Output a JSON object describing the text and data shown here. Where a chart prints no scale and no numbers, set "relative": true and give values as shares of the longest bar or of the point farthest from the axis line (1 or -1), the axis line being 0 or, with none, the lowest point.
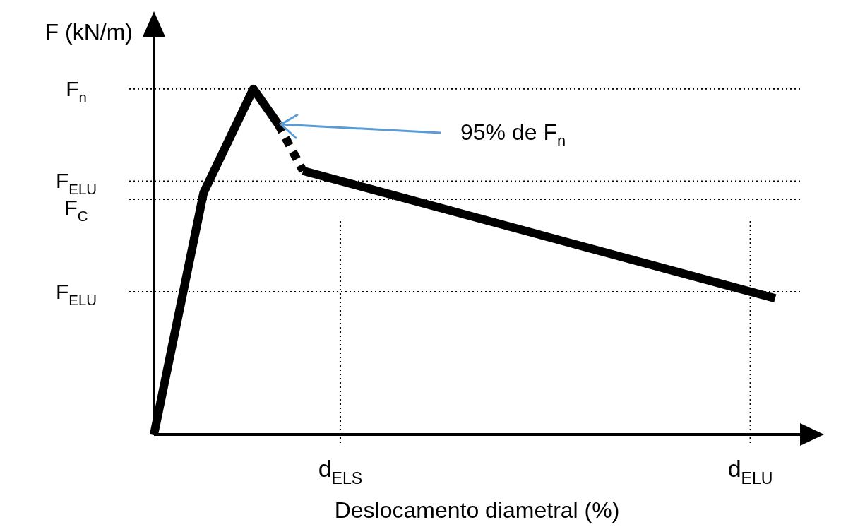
{
  "chart_data": {
    "type": "line",
    "relative": true,
    "xlabel": "Deslocamento diametral (%)",
    "ylabel": "F (kN/m)",
    "legend": false,
    "marker": "none",
    "categories": [
      null,
      null,
      null,
      null,
      null,
      null,
      null,
      null,
      null,
      null,
      null,
      null,
      null,
      null,
      null,
      "d$_{ELS}$",
      null,
      null,
      null,
      null,
      null,
      null,
      null,
      null,
      null,
      null,
      null,
      null,
      null,
      null,
      null,
      null,
      null,
      null,
      null,
      null,
      null,
      null,
      null,
      null,
      null,
      null,
      null,
      null,
      null,
      null,
      null,
      null,
      "d$_{ELU}$",
      null,
      null,
      null,
      null
    ],
    "series": [
      {
        "color": "#000000",
        "line_style": "solid",
        "values": [
          0,
          null,
          null,
          null,
          0.7,
          null,
          null,
          null,
          1,
          null,
          0.898,
          null,
          null,
          null,
          null,
          null,
          null,
          null,
          null,
          null,
          null,
          null,
          null,
          null,
          null,
          null,
          null,
          null,
          null,
          null,
          null,
          null,
          null,
          null,
          null,
          null,
          null,
          null,
          null,
          null,
          null,
          null,
          null,
          null,
          null,
          null,
          null,
          null,
          null,
          null,
          null,
          null,
          null
        ]
      },
      {
        "color": "#000000",
        "line_style": "dashed",
        "values": [
          null,
          null,
          null,
          null,
          null,
          null,
          null,
          null,
          null,
          null,
          0.898,
          null,
          0.763,
          null,
          null,
          null,
          null,
          null,
          null,
          null,
          null,
          null,
          null,
          null,
          null,
          null,
          null,
          null,
          null,
          null,
          null,
          null,
          null,
          null,
          null,
          null,
          null,
          null,
          null,
          null,
          null,
          null,
          null,
          null,
          null,
          null,
          null,
          null,
          null,
          null,
          null,
          null,
          null
        ]
      },
      {
        "color": "#000000",
        "line_style": "solid",
        "values": [
          null,
          null,
          null,
          null,
          null,
          null,
          null,
          null,
          null,
          null,
          null,
          null,
          0.763,
          null,
          null,
          null,
          null,
          null,
          null,
          null,
          null,
          null,
          null,
          null,
          null,
          null,
          null,
          null,
          null,
          null,
          null,
          null,
          null,
          null,
          null,
          null,
          null,
          null,
          null,
          null,
          null,
          null,
          null,
          null,
          null,
          null,
          null,
          null,
          null,
          null,
          0.394,
          null,
          null
        ]
      }
    ],
    "ref_lines": [
      {
        "axis": "y",
        "value": 1,
        "label": "F$_{n}$",
        "line_style": "dotted"
      },
      {
        "axis": "y",
        "value": 0.733,
        "label": "F$_{ELU}$",
        "line_style": "dotted"
      },
      {
        "axis": "y",
        "value": 0.681,
        "label": "F$_{C}$",
        "line_style": "dotted"
      },
      {
        "axis": "y",
        "value": 0.413,
        "label": "F$_{ELU}$",
        "line_style": "dotted"
      },
      {
        "axis": "x",
        "value": "d$_{ELS}$",
        "line_style": "dotted"
      },
      {
        "axis": "x",
        "value": "d$_{ELU}$",
        "line_style": "dotted"
      }
    ],
    "annotations": [
      "95% de F$_{n}$"
    ]
  }
}
